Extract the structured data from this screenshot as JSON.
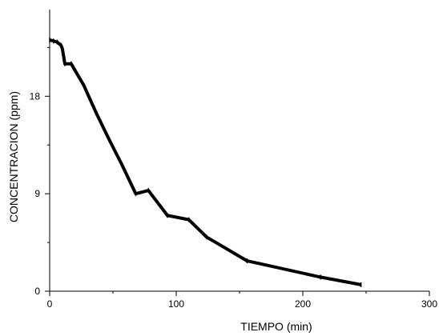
{
  "chart_data": {
    "type": "line",
    "xlabel": "TIEMPO (min)",
    "ylabel": "CONCENTRACION (ppm)",
    "xlim": [
      0,
      300
    ],
    "ylim": [
      0,
      26
    ],
    "x_ticks": [
      0,
      100,
      200,
      300
    ],
    "y_ticks": [
      0,
      9,
      18
    ],
    "x_tick_labels": [
      "0",
      "100",
      "200",
      "300"
    ],
    "y_tick_labels": [
      "0",
      "9",
      "18"
    ],
    "grid": false,
    "line_color": "#000000",
    "series": [
      {
        "x": [
          0,
          3,
          6,
          9,
          10,
          12,
          17,
          22,
          27,
          37,
          47,
          57,
          68,
          78,
          93,
          110,
          124,
          156,
          214,
          246
        ],
        "y": [
          23.2,
          23.1,
          23.0,
          22.7,
          22.4,
          21.0,
          21.0,
          20.0,
          19.0,
          16.4,
          14.0,
          11.7,
          9.0,
          9.3,
          7.0,
          6.6,
          5.0,
          2.8,
          1.3,
          0.6
        ]
      }
    ]
  }
}
